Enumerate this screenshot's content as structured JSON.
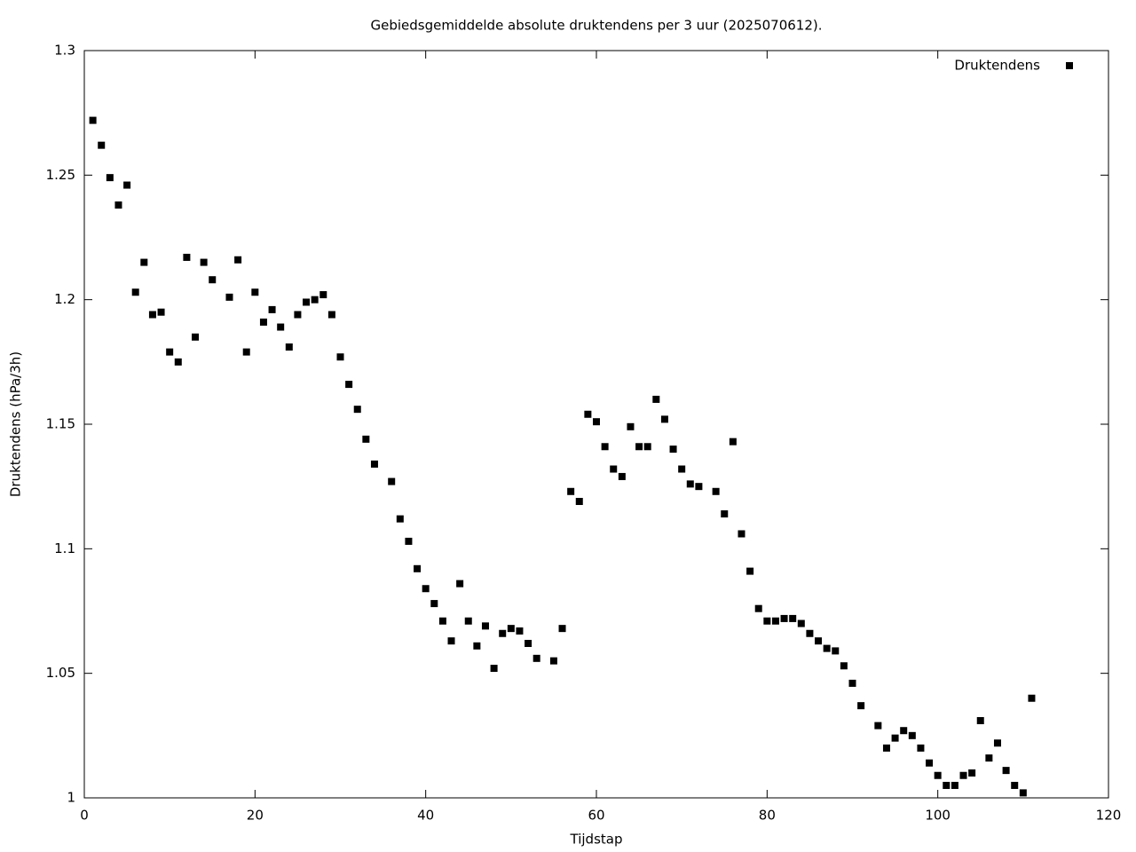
{
  "chart_data": {
    "type": "scatter",
    "title": "Gebiedsgemiddelde absolute druktendens per 3 uur (2025070612).",
    "x_label": "Tijdstap",
    "y_label": "Druktendens (hPa/3h)",
    "x": [
      1,
      2,
      3,
      4,
      5,
      6,
      7,
      8,
      9,
      10,
      11,
      12,
      13,
      14,
      15,
      17,
      18,
      19,
      20,
      21,
      22,
      23,
      24,
      25,
      26,
      27,
      28,
      29,
      30,
      31,
      32,
      33,
      34,
      36,
      37,
      38,
      39,
      40,
      41,
      42,
      43,
      44,
      45,
      46,
      47,
      48,
      49,
      50,
      51,
      52,
      53,
      55,
      56,
      57,
      58,
      59,
      60,
      61,
      62,
      63,
      64,
      65,
      66,
      67,
      68,
      69,
      70,
      71,
      72,
      74,
      75,
      76,
      77,
      78,
      79,
      80,
      81,
      82,
      83,
      84,
      85,
      86,
      87,
      88,
      89,
      90,
      91,
      93,
      94,
      95,
      96,
      97,
      98,
      99,
      100,
      101,
      102,
      103,
      104,
      105,
      106,
      107,
      108,
      109,
      110,
      111
    ],
    "series": [
      {
        "name": "Druktendens",
        "color": "#000000",
        "values": [
          1.272,
          1.262,
          1.249,
          1.238,
          1.246,
          1.203,
          1.215,
          1.194,
          1.195,
          1.179,
          1.175,
          1.217,
          1.185,
          1.215,
          1.208,
          1.201,
          1.216,
          1.179,
          1.203,
          1.191,
          1.196,
          1.189,
          1.181,
          1.194,
          1.199,
          1.2,
          1.202,
          1.194,
          1.177,
          1.166,
          1.156,
          1.144,
          1.134,
          1.127,
          1.112,
          1.103,
          1.092,
          1.084,
          1.078,
          1.071,
          1.063,
          1.086,
          1.071,
          1.061,
          1.069,
          1.052,
          1.066,
          1.068,
          1.067,
          1.062,
          1.056,
          1.055,
          1.068,
          1.123,
          1.119,
          1.154,
          1.151,
          1.141,
          1.132,
          1.129,
          1.149,
          1.141,
          1.141,
          1.16,
          1.152,
          1.14,
          1.132,
          1.126,
          1.125,
          1.123,
          1.114,
          1.143,
          1.106,
          1.091,
          1.076,
          1.071,
          1.071,
          1.072,
          1.072,
          1.07,
          1.066,
          1.063,
          1.06,
          1.059,
          1.053,
          1.046,
          1.037,
          1.029,
          1.02,
          1.024,
          1.027,
          1.025,
          1.02,
          1.014,
          1.009,
          1.005,
          1.005,
          1.009,
          1.01,
          1.031,
          1.016,
          1.022,
          1.011,
          1.005,
          1.002,
          1.04
        ]
      }
    ],
    "xlim": [
      0,
      120
    ],
    "xticks": [
      0,
      20,
      40,
      60,
      80,
      100,
      120
    ],
    "ylim": [
      1,
      1.3
    ],
    "yticks": [
      1,
      1.05,
      1.1,
      1.15,
      1.2,
      1.25,
      1.3
    ],
    "legend": "top-right"
  }
}
